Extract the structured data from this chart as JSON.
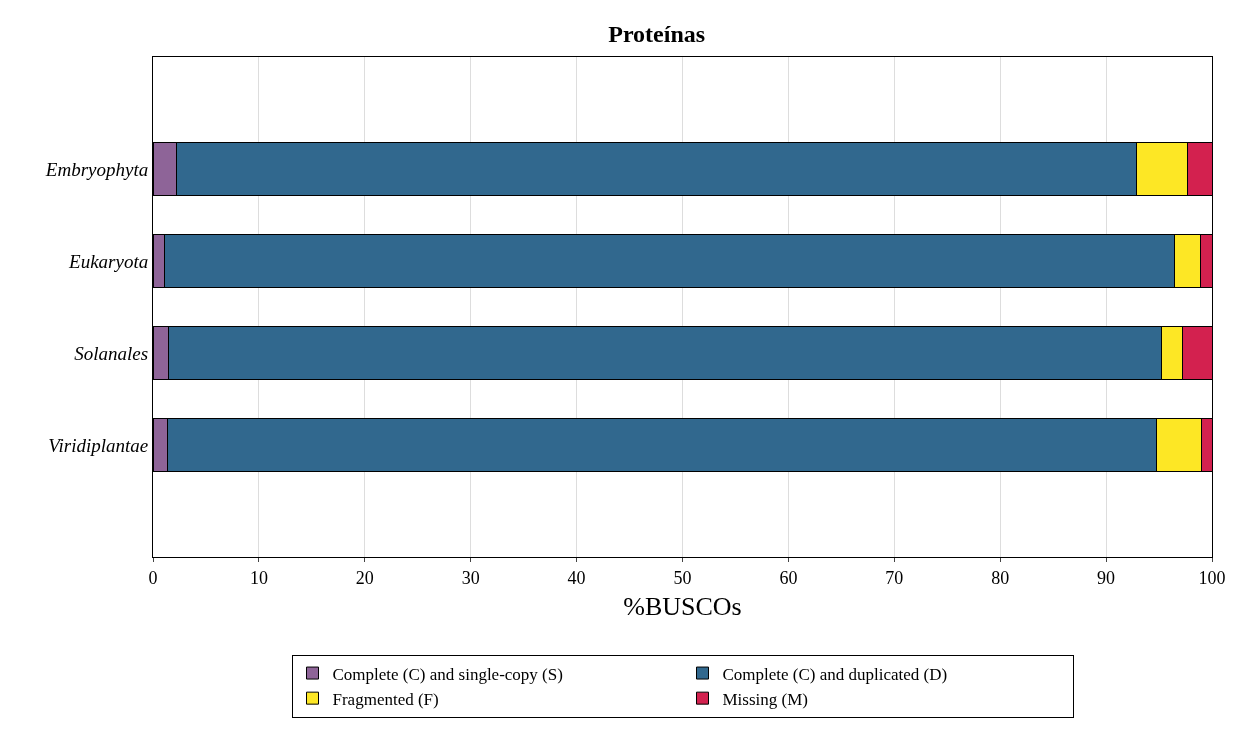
{
  "chart_data": {
    "type": "bar",
    "orientation": "horizontal",
    "stacked": true,
    "title": "Proteínas",
    "xlabel": "%BUSCOs",
    "categories": [
      "Embryophyta",
      "Eukaryota",
      "Solanales",
      "Viridiplantae"
    ],
    "series": [
      {
        "name": "Complete (C) and single-copy (S)",
        "color": "#8e6498",
        "values": [
          2.2,
          1.1,
          1.5,
          1.4
        ]
      },
      {
        "name": "Complete (C) and duplicated (D)",
        "color": "#31688e",
        "values": [
          90.7,
          95.4,
          93.7,
          93.4
        ]
      },
      {
        "name": "Fragmented (F)",
        "color": "#fde725",
        "values": [
          4.8,
          2.4,
          2.0,
          4.2
        ]
      },
      {
        "name": "Missing (M)",
        "color": "#d3214f",
        "values": [
          2.3,
          1.1,
          2.8,
          1.0
        ]
      }
    ],
    "xlim": [
      0,
      100
    ],
    "xticks": [
      0,
      10,
      20,
      30,
      40,
      50,
      60,
      70,
      80,
      90,
      100
    ],
    "grid": "x",
    "legend": "bottom"
  }
}
